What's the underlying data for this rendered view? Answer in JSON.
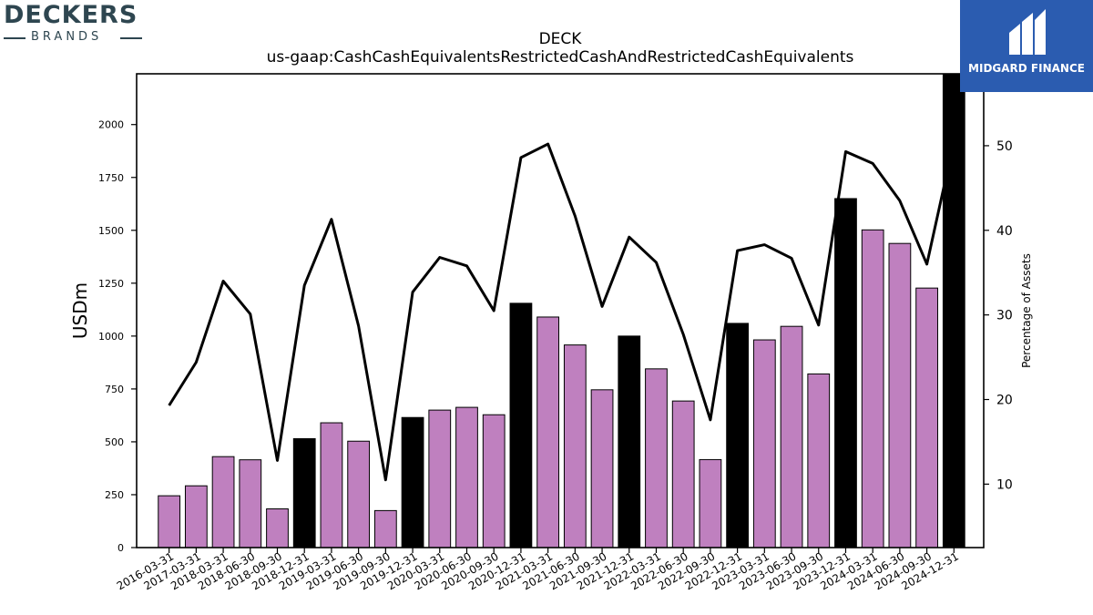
{
  "logos": {
    "left": {
      "word": "DECKERS",
      "sub": "BRANDS"
    },
    "right": {
      "word": "MIDGARD FINANCE"
    }
  },
  "chart_data": {
    "type": "bar",
    "title": "DECK",
    "subtitle": "us-gaap:CashCashEquivalentsRestrictedCashAndRestrictedCashEquivalents",
    "ylabel": "USDm",
    "y2label": "Percentage of Assets",
    "ylim": [
      0,
      2240
    ],
    "y2lim": [
      2.5,
      58.5
    ],
    "yticks": [
      0,
      250,
      500,
      750,
      1000,
      1250,
      1500,
      1750,
      2000
    ],
    "y2ticks": [
      10,
      20,
      30,
      40,
      50
    ],
    "categories": [
      "2016-03-31",
      "2017-03-31",
      "2018-03-31",
      "2018-06-30",
      "2018-09-30",
      "2018-12-31",
      "2019-03-31",
      "2019-06-30",
      "2019-09-30",
      "2019-12-31",
      "2020-03-31",
      "2020-06-30",
      "2020-09-30",
      "2020-12-31",
      "2021-03-31",
      "2021-06-30",
      "2021-09-30",
      "2021-12-31",
      "2022-03-31",
      "2022-06-30",
      "2022-09-30",
      "2022-12-31",
      "2023-03-31",
      "2023-06-30",
      "2023-09-30",
      "2023-12-31",
      "2024-03-31",
      "2024-06-30",
      "2024-09-30",
      "2024-12-31"
    ],
    "series": [
      {
        "kind": "bar",
        "values": [
          245,
          292,
          430,
          415,
          183,
          515,
          590,
          503,
          175,
          615,
          650,
          663,
          628,
          1155,
          1090,
          958,
          746,
          1000,
          845,
          693,
          416,
          1060,
          982,
          1046,
          821,
          1650,
          1502,
          1438,
          1227,
          2240
        ],
        "highlight": [
          false,
          false,
          false,
          false,
          false,
          true,
          false,
          false,
          false,
          true,
          false,
          false,
          false,
          true,
          false,
          false,
          false,
          true,
          false,
          false,
          false,
          true,
          false,
          false,
          false,
          true,
          false,
          false,
          false,
          true
        ]
      },
      {
        "kind": "line",
        "axis": "right",
        "values": [
          19.3,
          24.4,
          34.0,
          30.1,
          12.8,
          33.5,
          41.3,
          28.7,
          10.5,
          32.7,
          36.8,
          35.8,
          30.5,
          48.6,
          50.2,
          41.7,
          31.0,
          39.2,
          36.2,
          27.7,
          17.6,
          37.6,
          38.3,
          36.7,
          28.8,
          49.3,
          47.9,
          43.5,
          36.0,
          50.5
        ]
      }
    ],
    "colors": {
      "bar": "#bf80bf",
      "bar_highlight": "#000000",
      "line": "#000000"
    },
    "legend": "none",
    "grid": false
  }
}
